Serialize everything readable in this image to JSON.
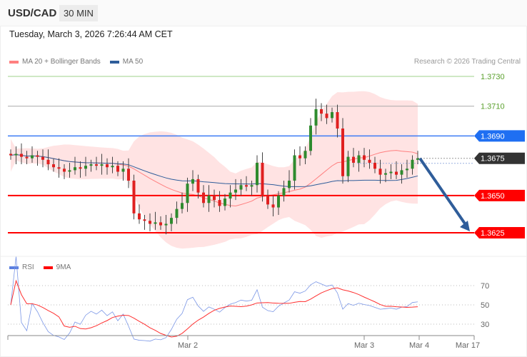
{
  "header": {
    "symbol": "USD/CAD",
    "timeframe": "30 MIN"
  },
  "timestamp": "Tuesday, March 3, 2026 7:26:44 AM CET",
  "legend": [
    {
      "label": "MA 20 + Bollinger Bands",
      "color": "#ff8080"
    },
    {
      "label": "MA 50",
      "color": "#2f5d9a"
    }
  ],
  "credit": "Research © 2026 Trading Central",
  "rsi_legend": [
    {
      "label": "RSI",
      "color": "#5b7fe0"
    },
    {
      "label": "9MA",
      "color": "#ff0000"
    }
  ],
  "levels": [
    {
      "price": "1.3730",
      "value": 1.373,
      "line": "#9fd18a",
      "text": "#5aa02c",
      "style": "text"
    },
    {
      "price": "1.3710",
      "value": 1.371,
      "line": "#aaaaaa",
      "text": "#5aa02c",
      "style": "text"
    },
    {
      "price": "1.3690",
      "value": 1.369,
      "line": "#3d7cf5",
      "text": "#ffffff",
      "bg": "#1f6ff2",
      "style": "tag"
    },
    {
      "price": "1.3675",
      "value": 1.3675,
      "line": "#999999",
      "text": "#ffffff",
      "bg": "#333333",
      "style": "tag-dotted"
    },
    {
      "price": "1.3650",
      "value": 1.365,
      "line": "#ff0000",
      "text": "#ffffff",
      "bg": "#ff0000",
      "style": "tag"
    },
    {
      "price": "1.3625",
      "value": 1.3625,
      "line": "#ff0000",
      "text": "#ffffff",
      "bg": "#ff0000",
      "style": "tag"
    }
  ],
  "rsi_levels": [
    "70",
    "50",
    "30"
  ],
  "x_labels": [
    "Mar 2",
    "Mar 3",
    "Mar 4",
    "Mar 17"
  ],
  "chart_data": {
    "type": "candlestick",
    "closes": [
      1.3677,
      1.3678,
      1.3676,
      1.3675,
      1.3677,
      1.3676,
      1.3674,
      1.3671,
      1.3669,
      1.3668,
      1.3666,
      1.3667,
      1.3669,
      1.3668,
      1.367,
      1.3671,
      1.367,
      1.3671,
      1.3669,
      1.367,
      1.3666,
      1.3668,
      1.366,
      1.3638,
      1.3634,
      1.3633,
      1.3631,
      1.3632,
      1.363,
      1.3631,
      1.3635,
      1.3641,
      1.3645,
      1.3658,
      1.3661,
      1.3652,
      1.3645,
      1.365,
      1.3647,
      1.3643,
      1.3648,
      1.3652,
      1.3654,
      1.3657,
      1.3656,
      1.3657,
      1.3672,
      1.365,
      1.3644,
      1.3642,
      1.365,
      1.3655,
      1.366,
      1.3677,
      1.3675,
      1.368,
      1.3697,
      1.3708,
      1.3705,
      1.3702,
      1.3706,
      1.3695,
      1.3663,
      1.3676,
      1.3672,
      1.3677,
      1.3674,
      1.3672,
      1.3668,
      1.3664,
      1.3665,
      1.3666,
      1.3664,
      1.3667,
      1.3668,
      1.3674,
      1.3675
    ],
    "forecast": {
      "from": 1.3675,
      "to": 1.3625,
      "direction": "down",
      "color": "#2f5d9a"
    },
    "colors": {
      "up": "#2e8b2e",
      "down": "#e02020",
      "band": "#ffd9d9",
      "ma20": "#ff8080",
      "ma50": "#2f5d9a"
    }
  }
}
